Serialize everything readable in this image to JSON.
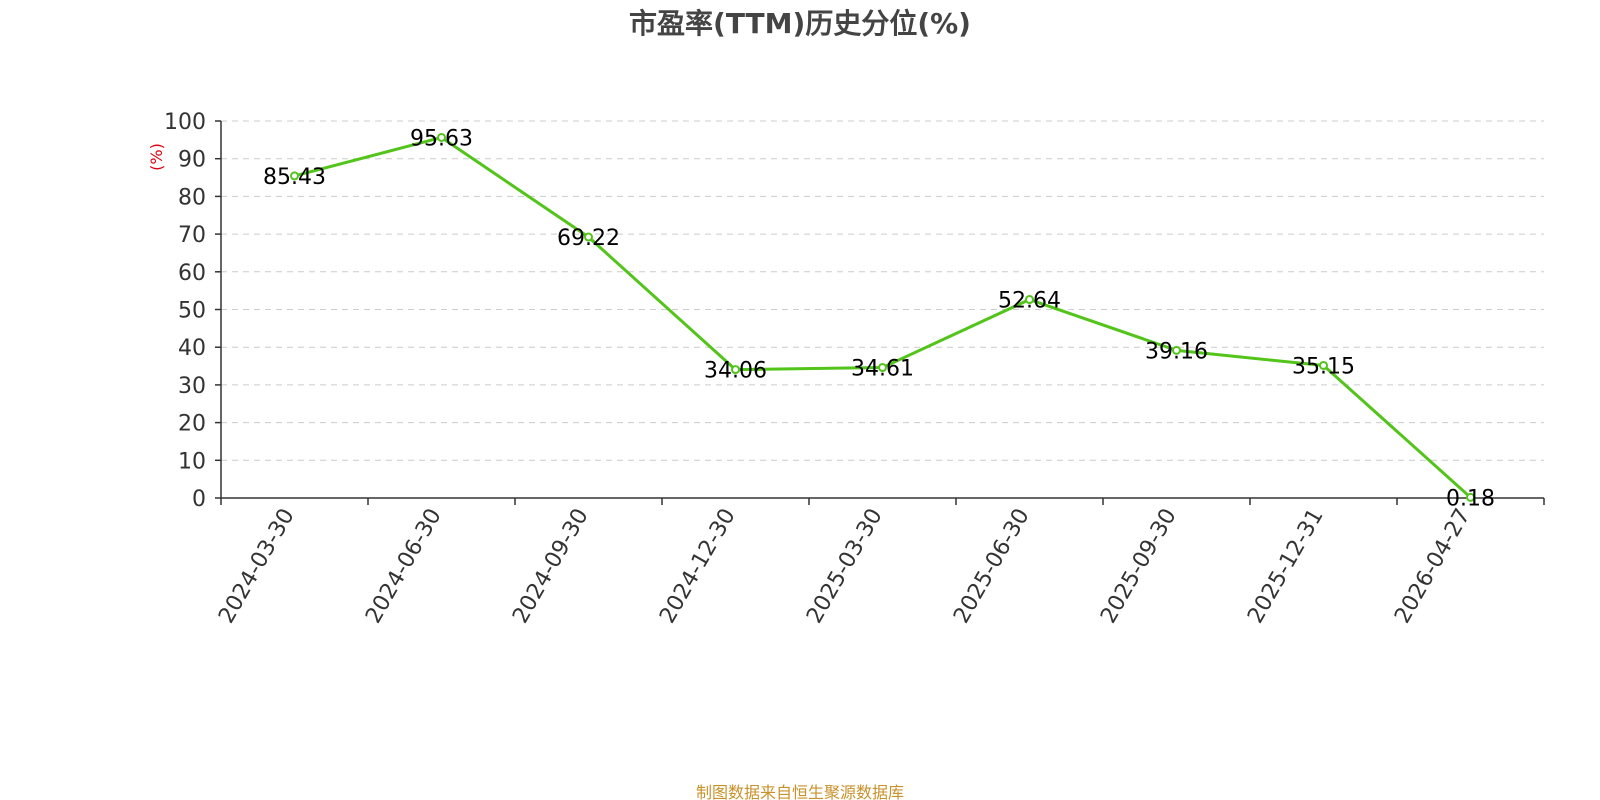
{
  "chart_data": {
    "type": "line",
    "title": "市盈率(TTM)历史分位(%)",
    "ylabel": "(%)",
    "xlabel": "",
    "ylim": [
      0,
      100
    ],
    "yticks": [
      0,
      10,
      20,
      30,
      40,
      50,
      60,
      70,
      80,
      90,
      100
    ],
    "categories": [
      "2024-03-30",
      "2024-06-30",
      "2024-09-30",
      "2024-12-30",
      "2025-03-30",
      "2025-06-30",
      "2025-09-30",
      "2025-12-31",
      "2026-04-27"
    ],
    "values": [
      85.43,
      95.63,
      69.22,
      34.06,
      34.61,
      52.64,
      39.16,
      35.15,
      0.18
    ],
    "labels": [
      "85.43",
      "95.63",
      "69.22",
      "34.06",
      "34.61",
      "52.64",
      "39.16",
      "35.15",
      "0.18"
    ],
    "grid": true,
    "grid_style": "dashed horizontal",
    "legend": "none"
  },
  "source": "制图数据来自恒生聚源数据库",
  "colors": {
    "line": "#52c41a",
    "ylabel": "#e0000f",
    "source": "#c8922a",
    "grid": "#cccccc",
    "axis": "#333333",
    "title": "#444444"
  }
}
